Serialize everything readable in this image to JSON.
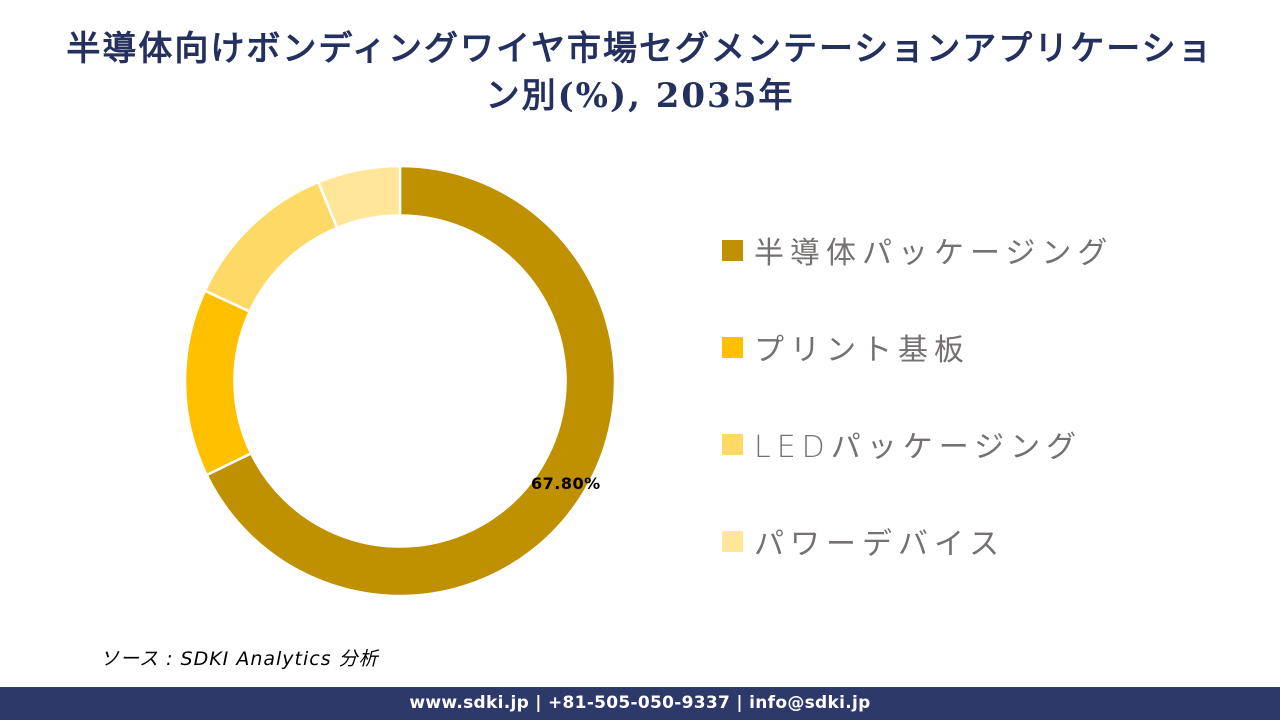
{
  "header": {
    "title_full": "半導体向けボンディングワイヤ市場セグメンテーションアプリケーション別(%), 2035年",
    "title_lines": [
      "半導体向けボンディングワイヤ市場セグメンテーションアプリケーショ",
      "ン別(%), 2035年"
    ]
  },
  "chart_data": {
    "type": "pie",
    "subtype": "donut",
    "title": "半導体向けボンディングワイヤ市場セグメンテーションアプリケーション別(%), 2035年",
    "legend_position": "right",
    "start_angle_deg": 0,
    "direction": "clockwise",
    "inner_radius_ratio": 0.77,
    "series": [
      {
        "name": "半導体パッケージング",
        "value": 67.8,
        "color": "#BF9000",
        "data_label": "67.80%"
      },
      {
        "name": "プリント基板",
        "value": 14.1,
        "color": "#FFC000",
        "data_label": ""
      },
      {
        "name": "LEDパッケージング",
        "value": 11.9,
        "color": "#FFD966",
        "data_label": ""
      },
      {
        "name": "パワーデバイス",
        "value": 6.2,
        "color": "#FFE699",
        "data_label": ""
      }
    ]
  },
  "source": {
    "text": "ソース : SDKI Analytics 分析"
  },
  "footer": {
    "text": "www.sdki.jp | +81-505-050-9337 | info@sdki.jp"
  },
  "colors": {
    "title_text": "#24305E",
    "footer_bg": "#2D3968",
    "legend_text": "#767171",
    "data_label_text": "#000000",
    "slice_gap_stroke": "#FFFFFF",
    "background": "#FFFFFF"
  }
}
